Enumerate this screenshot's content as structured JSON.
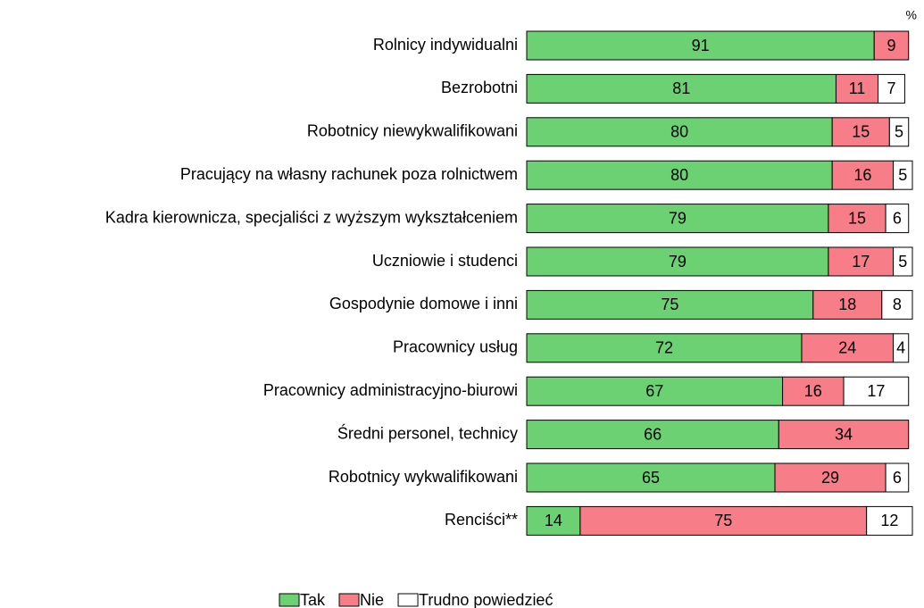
{
  "chart_data": {
    "type": "stacked-bar-horizontal",
    "unit_label": "%",
    "categories": [
      "Rolnicy indywidualni",
      "Bezrobotni",
      "Robotnicy niewykwalifikowani",
      "Pracujący na własny rachunek poza rolnictwem",
      "Kadra kierownicza, specjaliści z wyższym wykształceniem",
      "Uczniowie i studenci",
      "Gospodynie domowe i inni",
      "Pracownicy usług",
      "Pracownicy administracyjno-biurowi",
      "Średni personel, technicy",
      "Robotnicy wykwalifikowani",
      "Renciści**"
    ],
    "series": [
      {
        "name": "Tak",
        "color": "#6bd173",
        "values": [
          91,
          81,
          80,
          80,
          79,
          79,
          75,
          72,
          67,
          66,
          65,
          14
        ]
      },
      {
        "name": "Nie",
        "color": "#f77d88",
        "values": [
          9,
          11,
          15,
          16,
          15,
          17,
          18,
          24,
          16,
          34,
          29,
          75
        ]
      },
      {
        "name": "Trudno powiedzieć",
        "color": "#ffffff",
        "values": [
          null,
          7,
          5,
          5,
          6,
          5,
          8,
          4,
          17,
          null,
          6,
          12
        ]
      }
    ],
    "xlim": [
      0,
      101
    ],
    "legend": "bottom"
  }
}
